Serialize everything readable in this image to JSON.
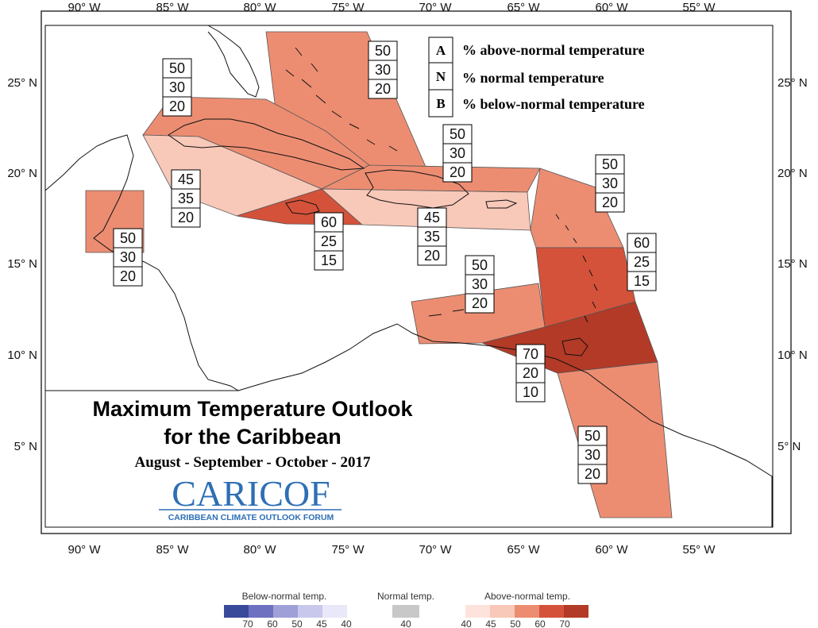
{
  "title": {
    "line1": "Maximum Temperature Outlook",
    "line2": "for the Caribbean",
    "period": "August - September - October - 2017"
  },
  "logo": {
    "name": "CARICOF",
    "subtitle": "CARIBBEAN CLIMATE OUTLOOK FORUM"
  },
  "key": [
    {
      "letter": "A",
      "text": "% above-normal temperature"
    },
    {
      "letter": "N",
      "text": "% normal temperature"
    },
    {
      "letter": "B",
      "text": "% below-normal temperature"
    }
  ],
  "axes": {
    "lon_labels": [
      "90° W",
      "85° W",
      "80° W",
      "75° W",
      "70° W",
      "65° W",
      "60° W",
      "55° W"
    ],
    "lat_labels": [
      "25° N",
      "20° N",
      "15° N",
      "10° N",
      "5° N"
    ]
  },
  "colors": {
    "above_40": "#fde3db",
    "above_45": "#f8c8b8",
    "above_50": "#ec8d72",
    "above_60": "#d4523a",
    "above_70": "#b23a27",
    "normal_40": "#c8c8c8",
    "below_40": "#e8e8f8",
    "below_45": "#c8c8ec",
    "below_50": "#a0a0d8",
    "below_60": "#6e70c0",
    "below_70": "#3a4a9a"
  },
  "regions": [
    {
      "name": "bahamas",
      "A": "50",
      "N": "30",
      "B": "20",
      "level": "50"
    },
    {
      "name": "cuba",
      "A": "50",
      "N": "30",
      "B": "20",
      "level": "50"
    },
    {
      "name": "belize",
      "A": "50",
      "N": "30",
      "B": "20",
      "level": "50"
    },
    {
      "name": "cayman",
      "A": "45",
      "N": "35",
      "B": "20",
      "level": "45"
    },
    {
      "name": "jamaica",
      "A": "60",
      "N": "25",
      "B": "15",
      "level": "60"
    },
    {
      "name": "hispaniola-puerto-rico",
      "A": "45",
      "N": "35",
      "B": "20",
      "level": "45"
    },
    {
      "name": "turks-caicos",
      "A": "50",
      "N": "30",
      "B": "20",
      "level": "50"
    },
    {
      "name": "northern-leewards",
      "A": "50",
      "N": "30",
      "B": "20",
      "level": "50"
    },
    {
      "name": "windwards",
      "A": "60",
      "N": "25",
      "B": "15",
      "level": "60"
    },
    {
      "name": "abc-islands",
      "A": "50",
      "N": "30",
      "B": "20",
      "level": "50"
    },
    {
      "name": "trinidad-tobago",
      "A": "70",
      "N": "20",
      "B": "10",
      "level": "70"
    },
    {
      "name": "guianas",
      "A": "50",
      "N": "30",
      "B": "20",
      "level": "50"
    }
  ],
  "legend": {
    "below": {
      "title": "Below-normal temp.",
      "labels": [
        "70",
        "60",
        "50",
        "45",
        "40"
      ]
    },
    "normal": {
      "title": "Normal temp.",
      "labels": [
        "40"
      ]
    },
    "above": {
      "title": "Above-normal temp.",
      "labels": [
        "40",
        "45",
        "50",
        "60",
        "70"
      ]
    }
  }
}
